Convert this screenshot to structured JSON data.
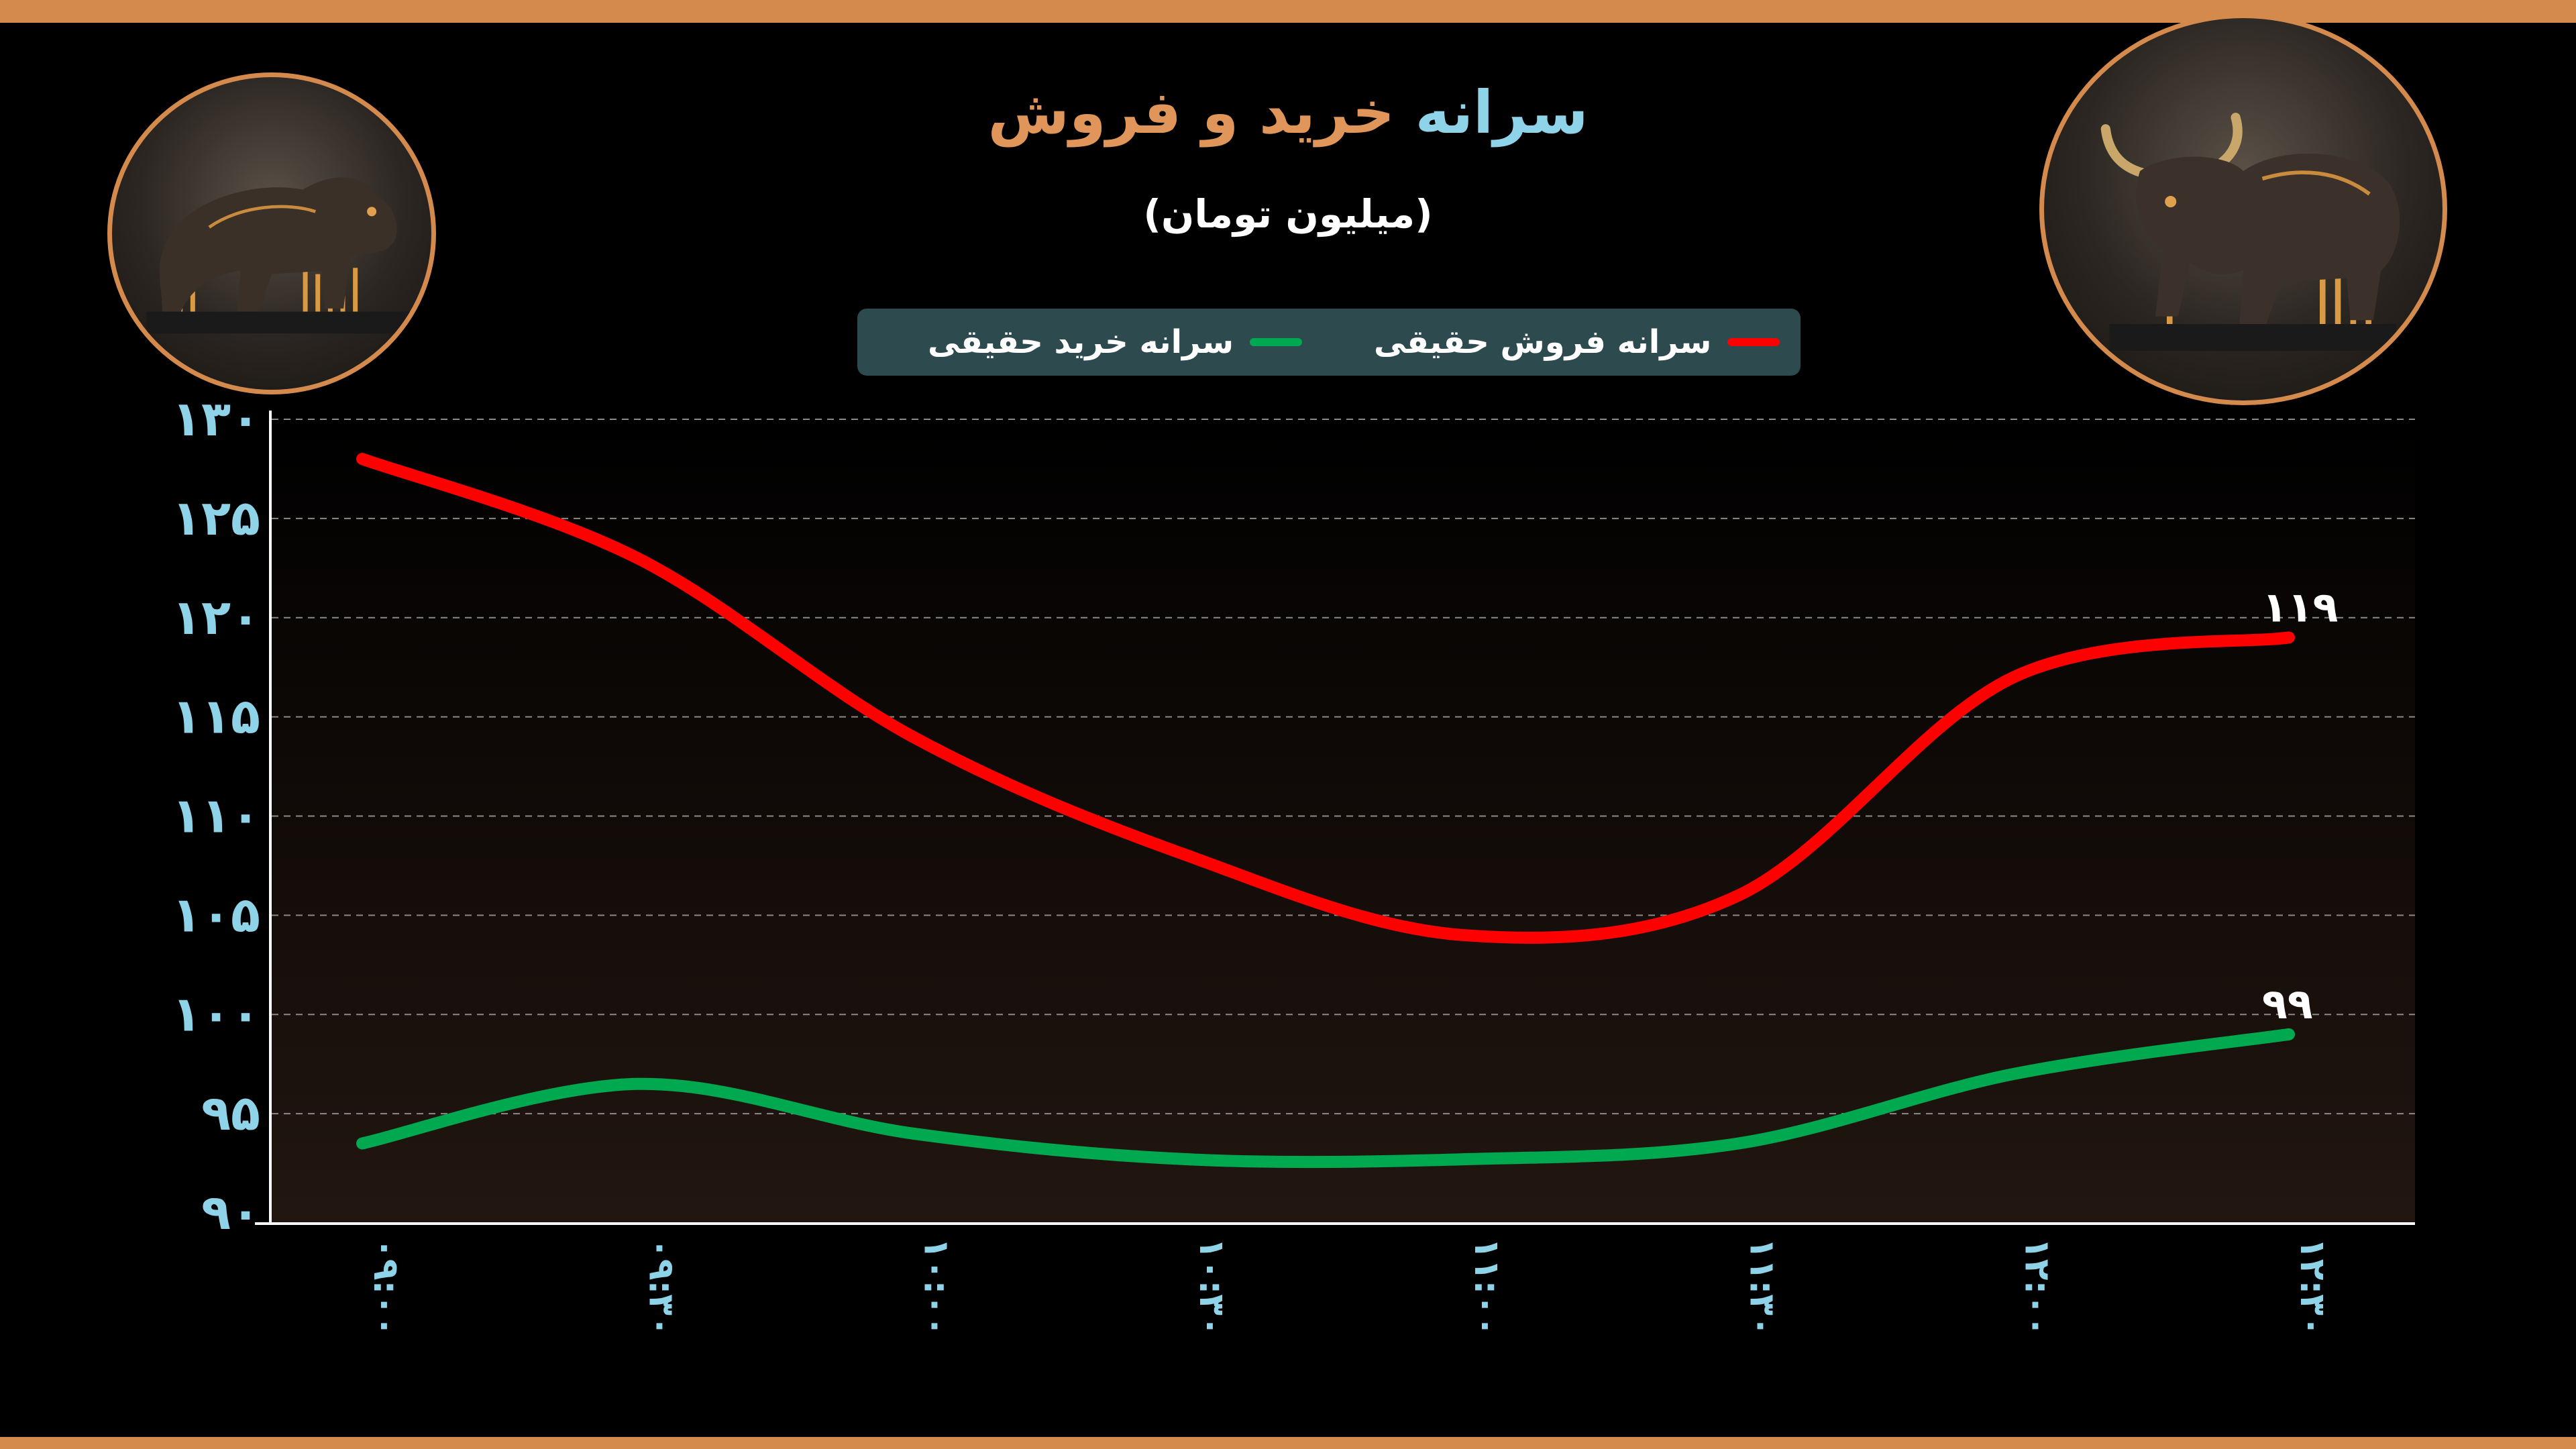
{
  "header": {
    "title_part1": "سرانه",
    "title_part2": "خرید و فروش",
    "subtitle": "(میلیون تومان)"
  },
  "images": {
    "left": "bear-icon",
    "right": "bull-icon"
  },
  "colors": {
    "accent": "#d48a4c",
    "title_blue": "#8fd3e8",
    "title_orange": "#e0955a",
    "legend_bg": "#2d4a4f",
    "sell": "#ff0000",
    "buy": "#00a84f"
  },
  "chart_data": {
    "type": "line",
    "title": "سرانه خرید و فروش",
    "subtitle": "(میلیون تومان)",
    "categories": [
      "۰۹:۰۰",
      "۰۹:۳۰",
      "۱۰:۰۰",
      "۱۰:۳۰",
      "۱۱:۰۰",
      "۱۱:۳۰",
      "۱۲:۰۰",
      "۱۲:۳۰"
    ],
    "ylim": [
      90,
      130
    ],
    "yticks": [
      90,
      95,
      100,
      105,
      110,
      115,
      120,
      125,
      130
    ],
    "ytick_labels": [
      "۹۰",
      "۹۵",
      "۱۰۰",
      "۱۰۵",
      "۱۱۰",
      "۱۱۵",
      "۱۲۰",
      "۱۲۵",
      "۱۳۰"
    ],
    "grid": true,
    "legend_position": "top",
    "series": [
      {
        "name": "سرانه فروش حقیقی",
        "color": "#ff0000",
        "values": [
          128,
          123,
          114,
          108,
          104,
          106,
          117,
          119
        ],
        "end_label": "۱۱۹"
      },
      {
        "name": "سرانه خرید حقیقی",
        "color": "#00a84f",
        "values": [
          93.5,
          96.5,
          94,
          92.7,
          92.7,
          93.5,
          97,
          99
        ],
        "end_label": "۹۹"
      }
    ]
  }
}
